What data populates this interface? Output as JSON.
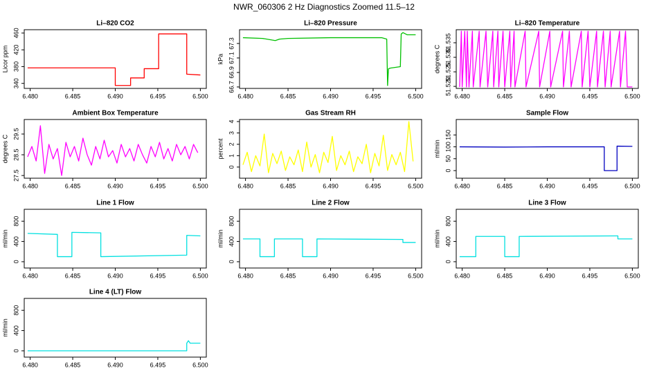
{
  "title": "NWR_060306  2 Hz Diagnostics Zoomed 11.5–12",
  "chart_data": [
    {
      "type": "line",
      "title": "Li–820 CO2",
      "ylabel": "Licor ppm",
      "color": "#ff0000",
      "xlim": [
        6.4793,
        6.5007
      ],
      "ylim": [
        328,
        468
      ],
      "xticks": [
        {
          "value": 6.48,
          "label": "6.480"
        },
        {
          "value": 6.485,
          "label": "6.485"
        },
        {
          "value": 6.49,
          "label": "6.490"
        },
        {
          "value": 6.495,
          "label": "6.495"
        },
        {
          "value": 6.5,
          "label": "6.500"
        }
      ],
      "yticks": [
        340,
        380,
        420,
        460
      ],
      "x": [
        6.4797,
        6.49,
        6.49,
        6.4918,
        6.4918,
        6.4934,
        6.4934,
        6.4951,
        6.4951,
        6.4984,
        6.4984,
        6.5
      ],
      "values": [
        377,
        377,
        335,
        335,
        353,
        353,
        375,
        375,
        458,
        458,
        362,
        360
      ]
    },
    {
      "type": "line",
      "title": "Li–820 Pressure",
      "ylabel": "kPa",
      "color": "#00c000",
      "xlim": [
        6.4793,
        6.5007
      ],
      "ylim": [
        66.68,
        67.49
      ],
      "xticks": [
        {
          "value": 6.48,
          "label": "6.480"
        },
        {
          "value": 6.485,
          "label": "6.485"
        },
        {
          "value": 6.49,
          "label": "6.490"
        },
        {
          "value": 6.495,
          "label": "6.495"
        },
        {
          "value": 6.5,
          "label": "6.500"
        }
      ],
      "yticks": [
        66.7,
        66.9,
        67.1,
        67.3
      ],
      "x": [
        6.4797,
        6.482,
        6.4835,
        6.484,
        6.485,
        6.49,
        6.496,
        6.4966,
        6.4967,
        6.4968,
        6.497,
        6.4982,
        6.4983,
        6.4985,
        6.499,
        6.5
      ],
      "values": [
        67.38,
        67.37,
        67.34,
        67.36,
        67.37,
        67.38,
        67.38,
        67.36,
        66.72,
        66.95,
        66.96,
        66.98,
        67.43,
        67.45,
        67.42,
        67.42
      ]
    },
    {
      "type": "line",
      "title": "Li–820 Temperature",
      "ylabel": "degrees C",
      "color": "#ff00ff",
      "xlim": [
        6.4793,
        6.5007
      ],
      "ylim": [
        51.5193,
        51.5395
      ],
      "xticks": [
        {
          "value": 6.48,
          "label": "6.480"
        },
        {
          "value": 6.485,
          "label": "6.485"
        },
        {
          "value": 6.49,
          "label": "6.490"
        },
        {
          "value": 6.495,
          "label": "6.495"
        },
        {
          "value": 6.5,
          "label": "6.500"
        }
      ],
      "yticks": [
        {
          "value": 51.52,
          "label": "51.520"
        },
        {
          "value": 51.525,
          "label": "51.525"
        },
        {
          "value": 51.53,
          "label": "51.530"
        },
        {
          "value": 51.535,
          "label": "51.535"
        }
      ],
      "x": [
        6.4797,
        6.4799,
        6.48,
        6.4803,
        6.4805,
        6.4806,
        6.4808,
        6.4812,
        6.4813,
        6.482,
        6.4821,
        6.4828,
        6.483,
        6.4836,
        6.4837,
        6.4842,
        6.4843,
        6.4848,
        6.485,
        6.4856,
        6.4857,
        6.4861,
        6.4862,
        6.4874,
        6.4875,
        6.489,
        6.4891,
        6.4903,
        6.4904,
        6.4918,
        6.4919,
        6.4926,
        6.4928,
        6.494,
        6.4941,
        6.4948,
        6.495,
        6.4958,
        6.4959,
        6.4966,
        6.4968,
        6.4974,
        6.4975,
        6.4985,
        6.4986,
        6.4992,
        6.4994,
        6.5
      ],
      "values": [
        51.5198,
        51.539,
        51.5198,
        51.539,
        51.5198,
        51.539,
        51.5198,
        51.539,
        51.5198,
        51.539,
        51.5198,
        51.539,
        51.5198,
        51.539,
        51.5198,
        51.539,
        51.5198,
        51.539,
        51.5198,
        51.539,
        51.5198,
        51.539,
        51.5198,
        51.539,
        51.5198,
        51.539,
        51.5198,
        51.539,
        51.5198,
        51.539,
        51.5198,
        51.539,
        51.5198,
        51.539,
        51.5198,
        51.539,
        51.5198,
        51.539,
        51.5198,
        51.539,
        51.5198,
        51.539,
        51.5198,
        51.539,
        51.5198,
        51.539,
        51.5198,
        51.5198
      ]
    },
    {
      "type": "line",
      "title": "Ambient Box Temperature",
      "ylabel": "degrees C",
      "color": "#ff00ff",
      "xlim": [
        6.4793,
        6.5007
      ],
      "ylim": [
        27.37,
        30.2
      ],
      "xticks": [
        {
          "value": 6.48,
          "label": "6.480"
        },
        {
          "value": 6.485,
          "label": "6.485"
        },
        {
          "value": 6.49,
          "label": "6.490"
        },
        {
          "value": 6.495,
          "label": "6.495"
        },
        {
          "value": 6.5,
          "label": "6.500"
        }
      ],
      "yticks": [
        27.5,
        28.5,
        29.5
      ],
      "x": [
        6.4797,
        6.4802,
        6.4807,
        6.4812,
        6.4817,
        6.4822,
        6.4827,
        6.4832,
        6.4837,
        6.4842,
        6.4847,
        6.4852,
        6.4857,
        6.4862,
        6.4867,
        6.4872,
        6.4877,
        6.4882,
        6.4887,
        6.4892,
        6.4897,
        6.4902,
        6.4907,
        6.4912,
        6.4917,
        6.4922,
        6.4927,
        6.4932,
        6.4937,
        6.4942,
        6.4947,
        6.4952,
        6.4957,
        6.4962,
        6.4967,
        6.4972,
        6.4977,
        6.4982,
        6.4987,
        6.4992,
        6.4997
      ],
      "values": [
        28.4,
        28.9,
        28.2,
        29.9,
        27.6,
        29.0,
        28.3,
        28.8,
        27.5,
        29.1,
        28.4,
        28.9,
        28.2,
        29.3,
        28.5,
        28.0,
        28.9,
        28.3,
        29.2,
        28.4,
        28.7,
        28.1,
        29.0,
        28.4,
        28.8,
        28.2,
        29.0,
        28.5,
        28.1,
        28.9,
        28.4,
        29.1,
        28.3,
        28.8,
        28.2,
        29.0,
        28.5,
        28.9,
        28.3,
        29.0,
        28.6
      ]
    },
    {
      "type": "line",
      "title": "Gas Stream RH",
      "ylabel": "percent",
      "color": "#ffff00",
      "xlim": [
        6.4793,
        6.5007
      ],
      "ylim": [
        -0.98,
        4.18
      ],
      "xticks": [
        {
          "value": 6.48,
          "label": "6.480"
        },
        {
          "value": 6.485,
          "label": "6.485"
        },
        {
          "value": 6.49,
          "label": "6.490"
        },
        {
          "value": 6.495,
          "label": "6.495"
        },
        {
          "value": 6.5,
          "label": "6.500"
        }
      ],
      "yticks": [
        0,
        1,
        2,
        3,
        4
      ],
      "x": [
        6.4797,
        6.4802,
        6.4807,
        6.4812,
        6.4817,
        6.4822,
        6.4827,
        6.4832,
        6.4837,
        6.4842,
        6.4847,
        6.4852,
        6.4857,
        6.4862,
        6.4867,
        6.4872,
        6.4877,
        6.4882,
        6.4887,
        6.4892,
        6.4897,
        6.4902,
        6.4907,
        6.4912,
        6.4917,
        6.4922,
        6.4927,
        6.4932,
        6.4937,
        6.4942,
        6.4947,
        6.4952,
        6.4957,
        6.4962,
        6.4967,
        6.4972,
        6.4977,
        6.4982,
        6.4987,
        6.4992,
        6.4997
      ],
      "values": [
        0.2,
        1.3,
        -0.4,
        1.0,
        0.1,
        2.9,
        -0.5,
        1.2,
        0.3,
        1.4,
        -0.3,
        0.9,
        0.2,
        1.5,
        -0.4,
        2.2,
        0.0,
        1.1,
        -0.5,
        1.3,
        0.4,
        2.7,
        -0.3,
        1.0,
        0.2,
        1.4,
        -0.4,
        0.9,
        0.3,
        2.0,
        -0.5,
        1.2,
        0.1,
        2.8,
        -0.3,
        1.1,
        0.2,
        1.3,
        -0.4,
        4.0,
        0.5
      ]
    },
    {
      "type": "line",
      "title": "Sample Flow",
      "ylabel": "ml/min",
      "color": "#0000c0",
      "xlim": [
        6.4793,
        6.5007
      ],
      "ylim": [
        -32,
        215
      ],
      "xticks": [
        {
          "value": 6.48,
          "label": "6.480"
        },
        {
          "value": 6.485,
          "label": "6.485"
        },
        {
          "value": 6.49,
          "label": "6.490"
        },
        {
          "value": 6.495,
          "label": "6.495"
        },
        {
          "value": 6.5,
          "label": "6.500"
        }
      ],
      "yticks": [
        0,
        50,
        100,
        150
      ],
      "x": [
        6.4797,
        6.485,
        6.49,
        6.4967,
        6.4967,
        6.4982,
        6.4982,
        6.5
      ],
      "values": [
        100,
        99,
        100,
        100,
        0,
        0,
        103,
        102
      ]
    },
    {
      "type": "line",
      "title": "Line 1 Flow",
      "ylabel": "ml/min",
      "color": "#00e0e0",
      "xlim": [
        6.4793,
        6.5007
      ],
      "ylim": [
        -124,
        1035
      ],
      "xticks": [
        {
          "value": 6.48,
          "label": "6.480"
        },
        {
          "value": 6.485,
          "label": "6.485"
        },
        {
          "value": 6.49,
          "label": "6.490"
        },
        {
          "value": 6.495,
          "label": "6.495"
        },
        {
          "value": 6.5,
          "label": "6.500"
        }
      ],
      "yticks": [
        0,
        400,
        800
      ],
      "x": [
        6.4797,
        6.4832,
        6.4832,
        6.4849,
        6.4849,
        6.4883,
        6.4883,
        6.4984,
        6.4984,
        6.5
      ],
      "values": [
        560,
        540,
        100,
        100,
        580,
        570,
        100,
        130,
        520,
        510
      ]
    },
    {
      "type": "line",
      "title": "Line 2 Flow",
      "ylabel": "ml/min",
      "color": "#00e0e0",
      "xlim": [
        6.4793,
        6.5007
      ],
      "ylim": [
        -124,
        1035
      ],
      "xticks": [
        {
          "value": 6.48,
          "label": "6.480"
        },
        {
          "value": 6.485,
          "label": "6.485"
        },
        {
          "value": 6.49,
          "label": "6.490"
        },
        {
          "value": 6.495,
          "label": "6.495"
        },
        {
          "value": 6.5,
          "label": "6.500"
        }
      ],
      "yticks": [
        0,
        400,
        800
      ],
      "x": [
        6.4797,
        6.4817,
        6.4817,
        6.4834,
        6.4834,
        6.4867,
        6.4867,
        6.4884,
        6.4884,
        6.4985,
        6.4985,
        6.5
      ],
      "values": [
        450,
        450,
        100,
        100,
        450,
        450,
        100,
        100,
        450,
        440,
        380,
        380
      ]
    },
    {
      "type": "line",
      "title": "Line 3 Flow",
      "ylabel": "ml/min",
      "color": "#00e0e0",
      "xlim": [
        6.4793,
        6.5007
      ],
      "ylim": [
        -124,
        1035
      ],
      "xticks": [
        {
          "value": 6.48,
          "label": "6.480"
        },
        {
          "value": 6.485,
          "label": "6.485"
        },
        {
          "value": 6.49,
          "label": "6.490"
        },
        {
          "value": 6.495,
          "label": "6.495"
        },
        {
          "value": 6.5,
          "label": "6.500"
        }
      ],
      "yticks": [
        0,
        400,
        800
      ],
      "x": [
        6.4797,
        6.4816,
        6.4816,
        6.485,
        6.485,
        6.4867,
        6.4867,
        6.4983,
        6.4983,
        6.5
      ],
      "values": [
        100,
        100,
        500,
        500,
        100,
        100,
        500,
        510,
        450,
        450
      ]
    },
    {
      "type": "line",
      "title": "Line 4 (LT) Flow",
      "ylabel": "ml/min",
      "color": "#00e0e0",
      "xlim": [
        6.4793,
        6.5007
      ],
      "ylim": [
        -124,
        1035
      ],
      "xticks": [
        {
          "value": 6.48,
          "label": "6.480"
        },
        {
          "value": 6.485,
          "label": "6.485"
        },
        {
          "value": 6.49,
          "label": "6.490"
        },
        {
          "value": 6.495,
          "label": "6.495"
        },
        {
          "value": 6.5,
          "label": "6.500"
        }
      ],
      "yticks": [
        0,
        400,
        800
      ],
      "x": [
        6.4797,
        6.4984,
        6.4984,
        6.4986,
        6.4988,
        6.5
      ],
      "values": [
        0,
        0,
        150,
        200,
        150,
        150
      ]
    }
  ]
}
